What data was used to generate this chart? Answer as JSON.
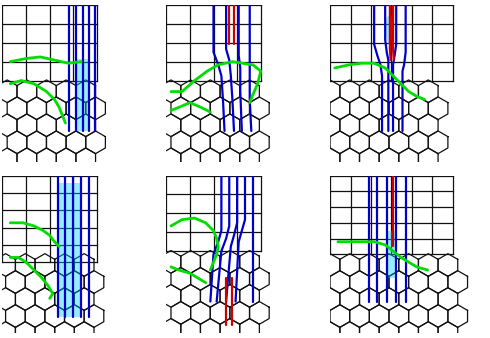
{
  "figure_width": 4.9,
  "figure_height": 3.38,
  "dpi": 100,
  "bg_color": "#ffffff",
  "square_color": "#111111",
  "hex_color": "#111111",
  "blue_color": "#0000cc",
  "green_color": "#00dd00",
  "red_color": "#cc0000",
  "cyan_color": "#00cfff",
  "cyan_alpha": 0.4,
  "lw_grid": 0.9,
  "lw_boundary": 2.0,
  "lw_blue": 1.6,
  "lw_red": 1.6
}
